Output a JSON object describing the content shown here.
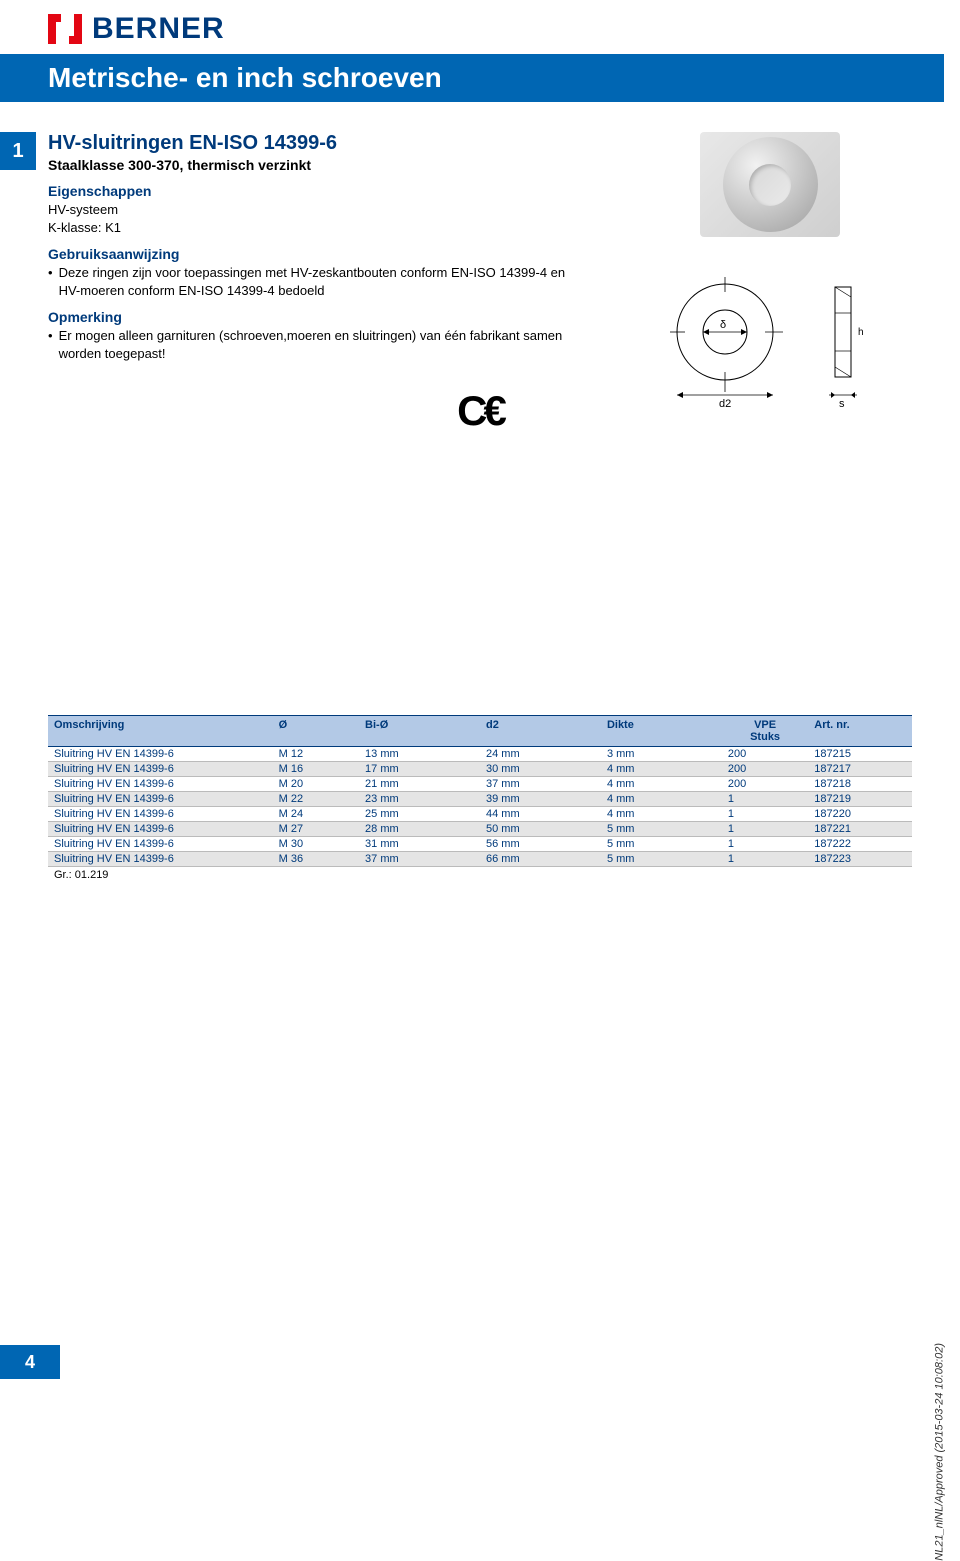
{
  "brand": "BERNER",
  "page_title": "Metrische- en inch schroeven",
  "side_tab": "1",
  "heading": "HV-sluitringen EN-ISO 14399-6",
  "subheading": "Staalklasse 300-370, thermisch verzinkt",
  "sections": {
    "eigenschappen": {
      "title": "Eigenschappen",
      "lines": [
        "HV-systeem",
        "K-klasse: K1"
      ]
    },
    "gebruik": {
      "title": "Gebruiksaanwijzing",
      "bullet": "Deze ringen zijn voor toepassingen met HV-zeskantbouten conform EN-ISO 14399-4 en HV-moeren conform EN-ISO 14399-4 bedoeld"
    },
    "opmerking": {
      "title": "Opmerking",
      "bullet": "Er mogen alleen garnituren (schroeven,moeren en sluitringen) van één fabrikant samen worden toegepast!"
    }
  },
  "ce_label": "C€",
  "diagram_labels": {
    "d2": "d2",
    "s": "s"
  },
  "table": {
    "columns": [
      "Omschrijving",
      "Ø",
      "Bi-Ø",
      "d2",
      "Dikte",
      "VPE\nStuks",
      "Art. nr."
    ],
    "col_widths": [
      "26%",
      "10%",
      "14%",
      "14%",
      "14%",
      "10%",
      "12%"
    ],
    "header_bg": "#b3c9e6",
    "header_color": "#003a7b",
    "row_color": "#003a7b",
    "shade_bg": "#e5e5e5",
    "rows": [
      [
        "Sluitring HV EN 14399-6",
        "M 12",
        "13 mm",
        "24 mm",
        "3 mm",
        "200",
        "187215"
      ],
      [
        "Sluitring HV EN 14399-6",
        "M 16",
        "17 mm",
        "30 mm",
        "4 mm",
        "200",
        "187217"
      ],
      [
        "Sluitring HV EN 14399-6",
        "M 20",
        "21 mm",
        "37 mm",
        "4 mm",
        "200",
        "187218"
      ],
      [
        "Sluitring HV EN 14399-6",
        "M 22",
        "23 mm",
        "39 mm",
        "4 mm",
        "1",
        "187219"
      ],
      [
        "Sluitring HV EN 14399-6",
        "M 24",
        "25 mm",
        "44 mm",
        "4 mm",
        "1",
        "187220"
      ],
      [
        "Sluitring HV EN 14399-6",
        "M 27",
        "28 mm",
        "50 mm",
        "5 mm",
        "1",
        "187221"
      ],
      [
        "Sluitring HV EN 14399-6",
        "M 30",
        "31 mm",
        "56 mm",
        "5 mm",
        "1",
        "187222"
      ],
      [
        "Sluitring HV EN 14399-6",
        "M 36",
        "37 mm",
        "66 mm",
        "5 mm",
        "1",
        "187223"
      ]
    ],
    "shaded_rows": [
      1,
      3,
      5,
      7
    ],
    "footnote": "Gr.: 01.219"
  },
  "page_number": "4",
  "approval_text": "NL21_nlNL/Approved (2015-03-24 10:08:02)",
  "colors": {
    "brand_blue": "#003a7b",
    "bar_blue": "#0066b3",
    "brand_red": "#e30613"
  }
}
